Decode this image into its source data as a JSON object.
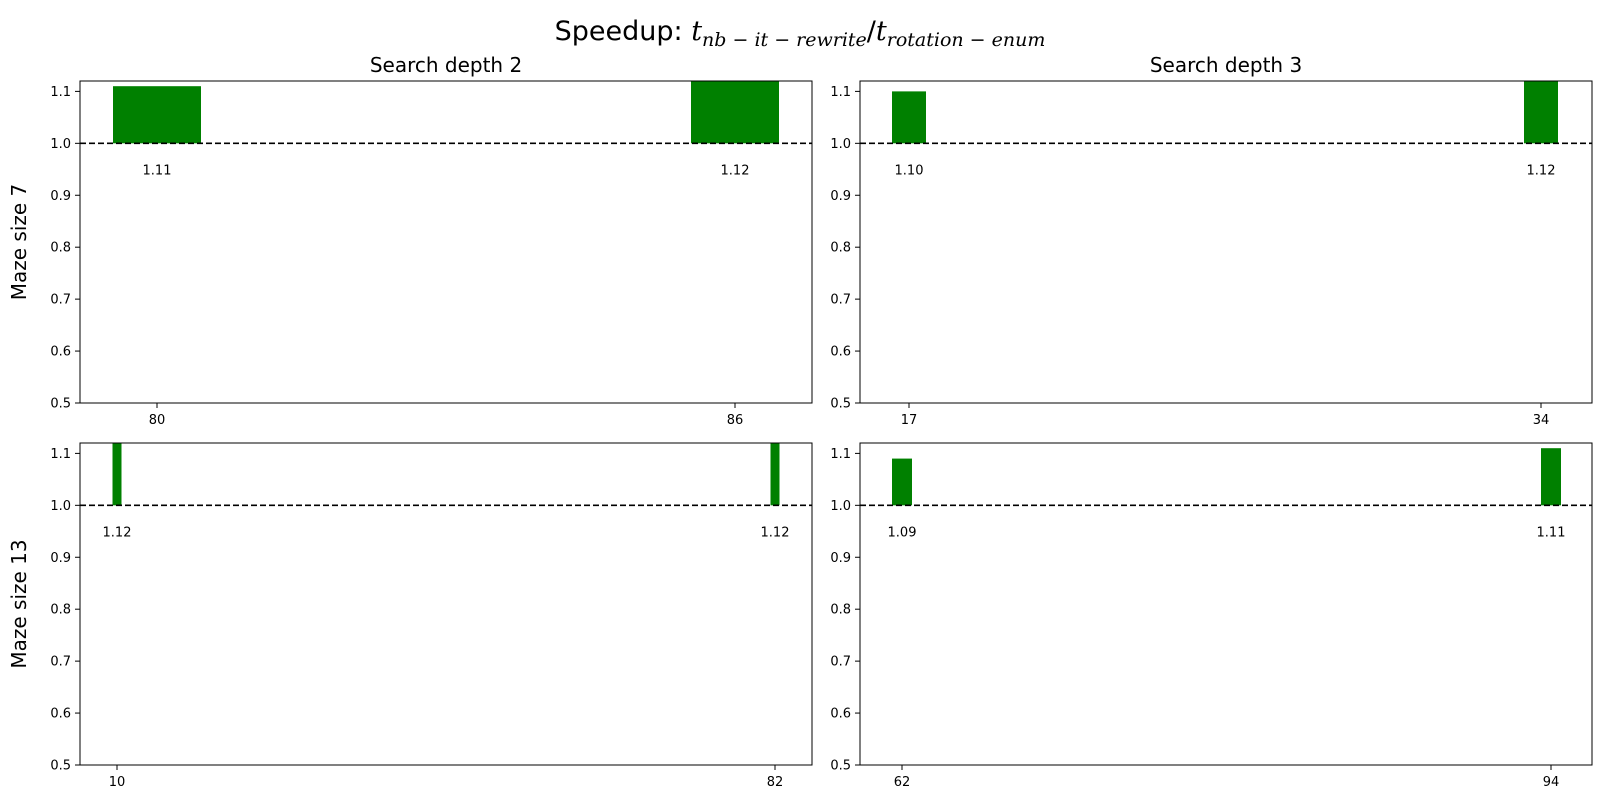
{
  "figure": {
    "title_prefix": "Speedup: ",
    "title_num_var": "t",
    "title_num_sub": "nb − it − rewrite",
    "title_slash": "/",
    "title_den_var": "t",
    "title_den_sub": "rotation − enum",
    "row_labels": [
      "Maze size 7",
      "Maze size 13"
    ],
    "col_titles": [
      "Search depth 2",
      "Search depth 3"
    ]
  },
  "colors": {
    "bar": "#008000",
    "reference_line": "#000000"
  },
  "chart_data": [
    {
      "type": "bar",
      "title": "Search depth 2",
      "ylabel": "Maze size 7",
      "x": [
        80,
        86
      ],
      "x_tick_labels": [
        "80",
        "86"
      ],
      "values": [
        1.11,
        1.12
      ],
      "data_labels": [
        "1.11",
        "1.12"
      ],
      "reference_line": 1.0,
      "ylim": [
        0.5,
        1.12
      ],
      "yticks": [
        "0.5",
        "0.6",
        "0.7",
        "0.8",
        "0.9",
        "1.0",
        "1.1"
      ],
      "grid": false
    },
    {
      "type": "bar",
      "title": "Search depth 3",
      "x": [
        17,
        34
      ],
      "x_tick_labels": [
        "17",
        "34"
      ],
      "values": [
        1.1,
        1.12
      ],
      "data_labels": [
        "1.10",
        "1.12"
      ],
      "reference_line": 1.0,
      "ylim": [
        0.5,
        1.12
      ],
      "yticks": [
        "0.5",
        "0.6",
        "0.7",
        "0.8",
        "0.9",
        "1.0",
        "1.1"
      ],
      "grid": false
    },
    {
      "type": "bar",
      "ylabel": "Maze size 13",
      "x": [
        10,
        82
      ],
      "x_tick_labels": [
        "10",
        "82"
      ],
      "values": [
        1.12,
        1.12
      ],
      "data_labels": [
        "1.12",
        "1.12"
      ],
      "reference_line": 1.0,
      "ylim": [
        0.5,
        1.12
      ],
      "yticks": [
        "0.5",
        "0.6",
        "0.7",
        "0.8",
        "0.9",
        "1.0",
        "1.1"
      ],
      "grid": false
    },
    {
      "type": "bar",
      "x": [
        62,
        94
      ],
      "x_tick_labels": [
        "62",
        "94"
      ],
      "values": [
        1.09,
        1.11
      ],
      "data_labels": [
        "1.09",
        "1.11"
      ],
      "reference_line": 1.0,
      "ylim": [
        0.5,
        1.12
      ],
      "yticks": [
        "0.5",
        "0.6",
        "0.7",
        "0.8",
        "0.9",
        "1.0",
        "1.1"
      ],
      "grid": false
    }
  ]
}
